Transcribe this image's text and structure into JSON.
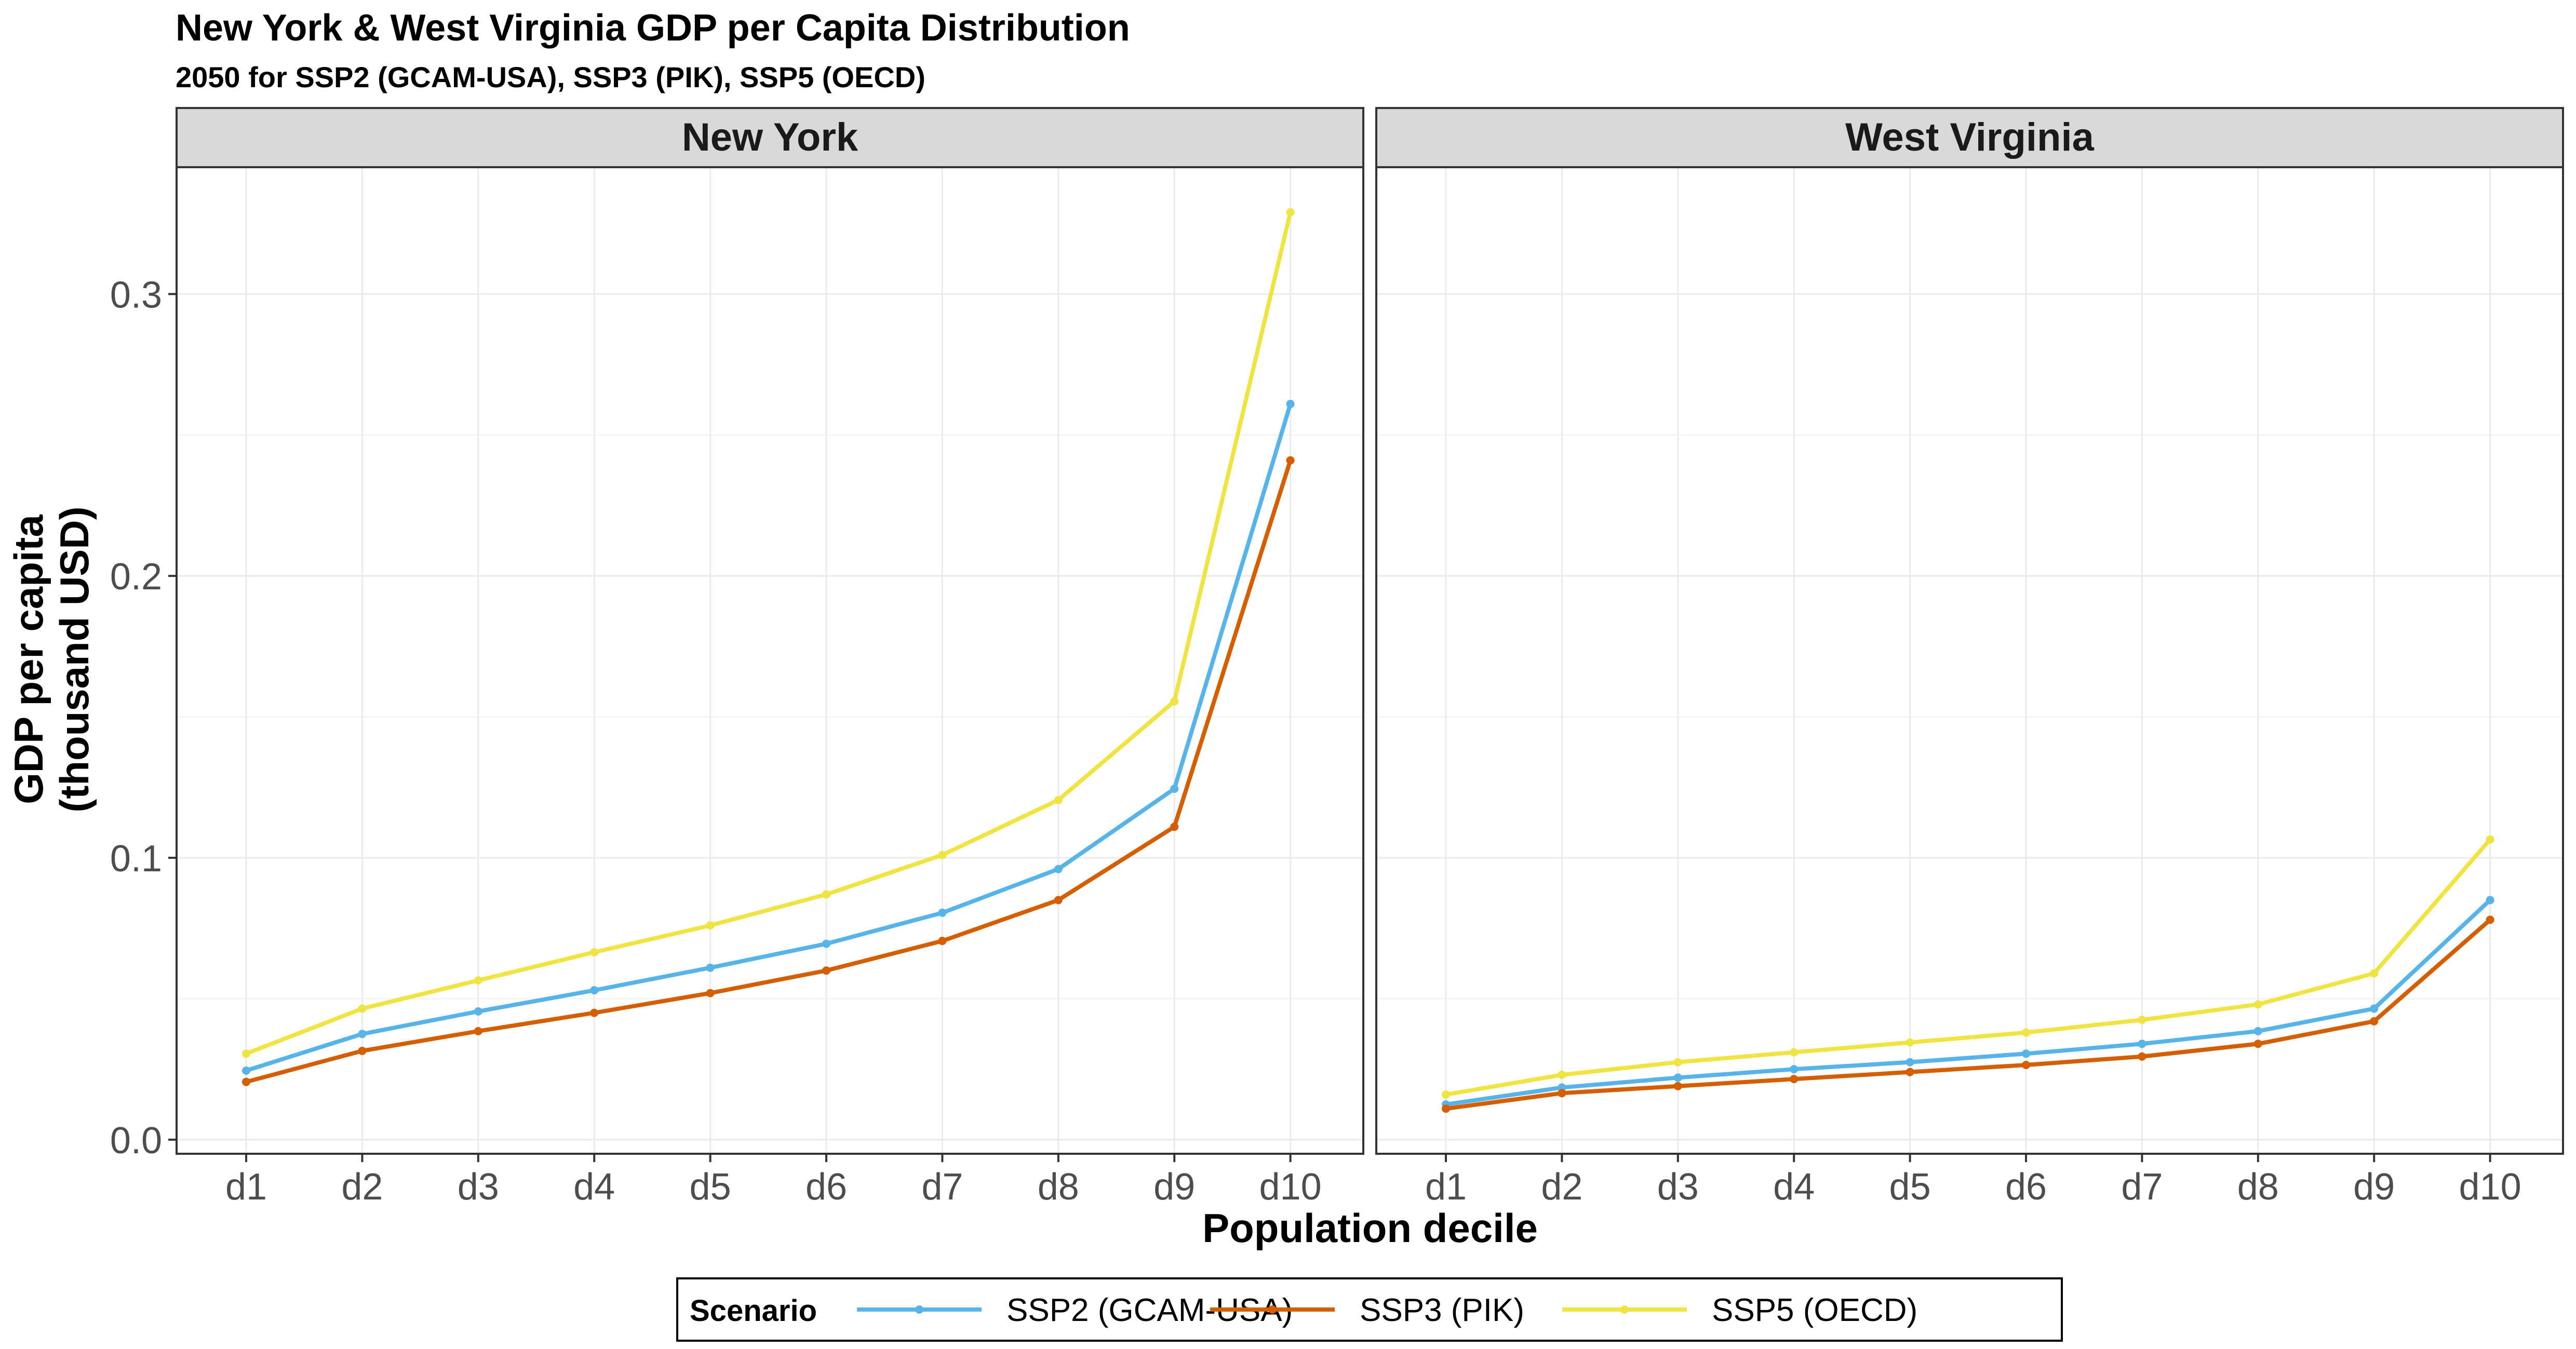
{
  "chart_data": {
    "type": "line",
    "title": "New York & West Virginia GDP per Capita Distribution",
    "subtitle": "2050 for SSP2 (GCAM-USA), SSP3 (PIK), SSP5 (OECD)",
    "xlabel": "Population decile",
    "ylabel_lines": [
      "GDP per capita",
      "(thousand USD)"
    ],
    "categories": [
      "d1",
      "d2",
      "d3",
      "d4",
      "d5",
      "d6",
      "d7",
      "d8",
      "d9",
      "d10"
    ],
    "ylim": [
      -0.005,
      0.345
    ],
    "yticks": [
      0.0,
      0.1,
      0.2,
      0.3
    ],
    "ytick_labels": [
      "0.0",
      "0.1",
      "0.2",
      "0.3"
    ],
    "grid": true,
    "legend": {
      "title": "Scenario",
      "position": "bottom",
      "entries": [
        "SSP2 (GCAM-USA)",
        "SSP3 (PIK)",
        "SSP5 (OECD)"
      ]
    },
    "colors": {
      "SSP2 (GCAM-USA)": "#56b4e9",
      "SSP3 (PIK)": "#d55e00",
      "SSP5 (OECD)": "#f0e442"
    },
    "panels": [
      {
        "name": "New York",
        "series": [
          {
            "name": "SSP2 (GCAM-USA)",
            "values": [
              0.0245,
              0.0375,
              0.0455,
              0.053,
              0.061,
              0.0695,
              0.0805,
              0.096,
              0.1245,
              0.261
            ]
          },
          {
            "name": "SSP3 (PIK)",
            "values": [
              0.0205,
              0.0315,
              0.0385,
              0.045,
              0.052,
              0.06,
              0.0705,
              0.085,
              0.111,
              0.241
            ]
          },
          {
            "name": "SSP5 (OECD)",
            "values": [
              0.0305,
              0.0465,
              0.0565,
              0.0665,
              0.076,
              0.087,
              0.101,
              0.1205,
              0.1555,
              0.329
            ]
          }
        ]
      },
      {
        "name": "West Virginia",
        "series": [
          {
            "name": "SSP2 (GCAM-USA)",
            "values": [
              0.0125,
              0.0185,
              0.022,
              0.025,
              0.0275,
              0.0305,
              0.034,
              0.0385,
              0.0465,
              0.085
            ]
          },
          {
            "name": "SSP3 (PIK)",
            "values": [
              0.011,
              0.0165,
              0.019,
              0.0215,
              0.024,
              0.0265,
              0.0295,
              0.034,
              0.042,
              0.078
            ]
          },
          {
            "name": "SSP5 (OECD)",
            "values": [
              0.016,
              0.023,
              0.0275,
              0.031,
              0.0345,
              0.038,
              0.0425,
              0.048,
              0.059,
              0.1065
            ]
          }
        ]
      }
    ]
  }
}
